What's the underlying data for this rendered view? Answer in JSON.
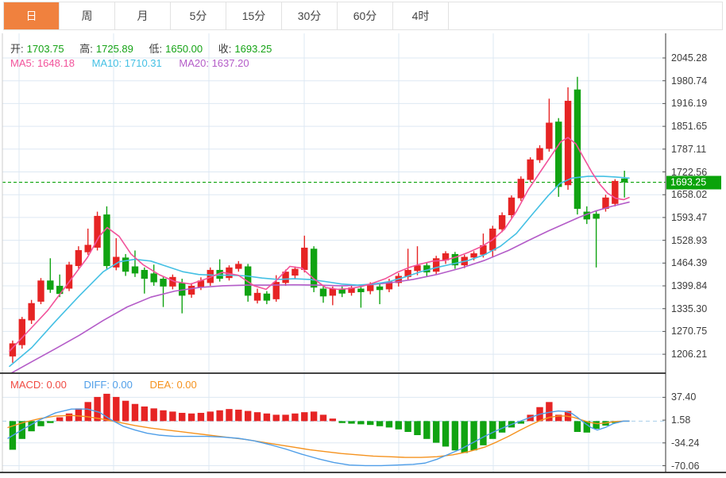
{
  "tabs": {
    "items": [
      {
        "label": "日",
        "selected": true
      },
      {
        "label": "周",
        "selected": false
      },
      {
        "label": "月",
        "selected": false
      },
      {
        "label": "5分",
        "selected": false
      },
      {
        "label": "15分",
        "selected": false
      },
      {
        "label": "30分",
        "selected": false
      },
      {
        "label": "60分",
        "selected": false
      },
      {
        "label": "4时",
        "selected": false
      }
    ]
  },
  "ohlc_header": {
    "open_label": "开:",
    "open_value": "1703.75",
    "high_label": "高:",
    "high_value": "1725.89",
    "low_label": "低:",
    "low_value": "1650.00",
    "close_label": "收:",
    "close_value": "1693.25"
  },
  "ma_header": {
    "ma5": "MA5: 1648.18",
    "ma10": "MA10: 1710.31",
    "ma20": "MA20: 1637.20"
  },
  "macd_header": {
    "macd": "MACD: 0.00",
    "diff": "DIFF: 0.00",
    "dea": "DEA: 0.00"
  },
  "price_axis": {
    "current_badge": "1693.25"
  },
  "colors": {
    "accent_tab": "#f0813e",
    "up_red": "#e62424",
    "down_green": "#10a312",
    "value_green": "#15a315",
    "ma5_pink": "#f2539b",
    "ma10_cyan": "#44c0e4",
    "ma20_purple": "#b45cc8",
    "diff_blue": "#4f9ee8",
    "dea_orange": "#f5921e",
    "macd_label_red": "#f04a42",
    "grid": "#dde8f3",
    "zero_dash": "#a8cdea",
    "axis_line": "#555555",
    "divider": "#2a2a2a",
    "badge_bg": "#0aa30a",
    "price_dash": "#0ca30a",
    "tick_text": "#3d3d3d"
  },
  "chart_data": {
    "type": "candlestick_with_macd",
    "main": {
      "ylim_ticks": [
        2045.28,
        1980.74,
        1916.19,
        1851.65,
        1787.11,
        1722.56,
        1658.02,
        1593.47,
        1528.93,
        1464.39,
        1399.84,
        1335.3,
        1270.75,
        1206.21
      ],
      "last_price": 1693.25,
      "candles_ohlc": [
        [
          1200,
          1245,
          1182,
          1237
        ],
        [
          1232,
          1312,
          1222,
          1306
        ],
        [
          1302,
          1360,
          1292,
          1351
        ],
        [
          1355,
          1422,
          1348,
          1415
        ],
        [
          1415,
          1478,
          1380,
          1389
        ],
        [
          1400,
          1432,
          1368,
          1377
        ],
        [
          1392,
          1468,
          1385,
          1460
        ],
        [
          1456,
          1512,
          1449,
          1501
        ],
        [
          1495,
          1562,
          1488,
          1516
        ],
        [
          1508,
          1610,
          1500,
          1598
        ],
        [
          1602,
          1625,
          1448,
          1456
        ],
        [
          1452,
          1535,
          1444,
          1482
        ],
        [
          1480,
          1490,
          1428,
          1440
        ],
        [
          1455,
          1500,
          1425,
          1435
        ],
        [
          1445,
          1452,
          1378,
          1420
        ],
        [
          1435,
          1460,
          1400,
          1410
        ],
        [
          1420,
          1428,
          1340,
          1398
        ],
        [
          1398,
          1432,
          1390,
          1425
        ],
        [
          1408,
          1420,
          1322,
          1372
        ],
        [
          1375,
          1408,
          1366,
          1400
        ],
        [
          1395,
          1424,
          1388,
          1415
        ],
        [
          1408,
          1452,
          1400,
          1445
        ],
        [
          1445,
          1475,
          1412,
          1420
        ],
        [
          1422,
          1458,
          1415,
          1452
        ],
        [
          1448,
          1470,
          1440,
          1462
        ],
        [
          1455,
          1462,
          1355,
          1372
        ],
        [
          1358,
          1392,
          1350,
          1380
        ],
        [
          1378,
          1385,
          1348,
          1358
        ],
        [
          1362,
          1430,
          1355,
          1411
        ],
        [
          1408,
          1446,
          1400,
          1440
        ],
        [
          1429,
          1455,
          1420,
          1448
        ],
        [
          1445,
          1542,
          1438,
          1508
        ],
        [
          1505,
          1512,
          1382,
          1395
        ],
        [
          1392,
          1400,
          1352,
          1370
        ],
        [
          1372,
          1398,
          1345,
          1392
        ],
        [
          1390,
          1398,
          1368,
          1378
        ],
        [
          1380,
          1402,
          1372,
          1395
        ],
        [
          1392,
          1400,
          1338,
          1382
        ],
        [
          1385,
          1410,
          1376,
          1402
        ],
        [
          1398,
          1405,
          1348,
          1388
        ],
        [
          1390,
          1420,
          1382,
          1412
        ],
        [
          1408,
          1436,
          1398,
          1428
        ],
        [
          1425,
          1505,
          1418,
          1445
        ],
        [
          1442,
          1512,
          1430,
          1458
        ],
        [
          1458,
          1465,
          1425,
          1438
        ],
        [
          1440,
          1485,
          1432,
          1478
        ],
        [
          1472,
          1498,
          1462,
          1492
        ],
        [
          1490,
          1496,
          1448,
          1458
        ],
        [
          1458,
          1488,
          1450,
          1482
        ],
        [
          1480,
          1498,
          1472,
          1492
        ],
        [
          1488,
          1548,
          1480,
          1515
        ],
        [
          1500,
          1570,
          1480,
          1562
        ],
        [
          1560,
          1608,
          1552,
          1600
        ],
        [
          1600,
          1656,
          1592,
          1650
        ],
        [
          1648,
          1710,
          1640,
          1703
        ],
        [
          1700,
          1764,
          1694,
          1758
        ],
        [
          1756,
          1798,
          1748,
          1790
        ],
        [
          1788,
          1930,
          1780,
          1862
        ],
        [
          1865,
          1875,
          1652,
          1680
        ],
        [
          1685,
          1962,
          1672,
          1924
        ],
        [
          1956,
          1992,
          1602,
          1618
        ],
        [
          1610,
          1625,
          1575,
          1588
        ],
        [
          1604,
          1612,
          1452,
          1590
        ],
        [
          1618,
          1658,
          1610,
          1650
        ],
        [
          1632,
          1702,
          1625,
          1697
        ],
        [
          1703.75,
          1725.89,
          1650.0,
          1693.25
        ]
      ],
      "ma5": [
        [
          12,
          1215
        ],
        [
          35,
          1270
        ],
        [
          60,
          1330
        ],
        [
          85,
          1405
        ],
        [
          110,
          1480
        ],
        [
          125,
          1540
        ],
        [
          135,
          1565
        ],
        [
          150,
          1540
        ],
        [
          165,
          1490
        ],
        [
          180,
          1460
        ],
        [
          200,
          1432
        ],
        [
          220,
          1412
        ],
        [
          240,
          1405
        ],
        [
          260,
          1420
        ],
        [
          280,
          1438
        ],
        [
          300,
          1430
        ],
        [
          320,
          1400
        ],
        [
          335,
          1390
        ],
        [
          350,
          1420
        ],
        [
          365,
          1455
        ],
        [
          380,
          1450
        ],
        [
          395,
          1420
        ],
        [
          410,
          1395
        ],
        [
          425,
          1390
        ],
        [
          440,
          1392
        ],
        [
          455,
          1398
        ],
        [
          470,
          1408
        ],
        [
          485,
          1420
        ],
        [
          500,
          1438
        ],
        [
          515,
          1452
        ],
        [
          530,
          1462
        ],
        [
          545,
          1470
        ],
        [
          560,
          1472
        ],
        [
          575,
          1482
        ],
        [
          590,
          1495
        ],
        [
          605,
          1510
        ],
        [
          620,
          1530
        ],
        [
          635,
          1560
        ],
        [
          650,
          1610
        ],
        [
          665,
          1672
        ],
        [
          680,
          1722
        ],
        [
          695,
          1772
        ],
        [
          706,
          1808
        ],
        [
          715,
          1820
        ],
        [
          725,
          1802
        ],
        [
          735,
          1762
        ],
        [
          745,
          1722
        ],
        [
          755,
          1688
        ],
        [
          765,
          1662
        ],
        [
          775,
          1648
        ],
        [
          785,
          1644
        ],
        [
          792,
          1650
        ]
      ],
      "ma10": [
        [
          12,
          1172
        ],
        [
          40,
          1225
        ],
        [
          70,
          1300
        ],
        [
          100,
          1372
        ],
        [
          130,
          1440
        ],
        [
          150,
          1468
        ],
        [
          170,
          1475
        ],
        [
          190,
          1470
        ],
        [
          210,
          1455
        ],
        [
          230,
          1440
        ],
        [
          250,
          1432
        ],
        [
          270,
          1430
        ],
        [
          290,
          1430
        ],
        [
          310,
          1428
        ],
        [
          330,
          1422
        ],
        [
          350,
          1418
        ],
        [
          370,
          1420
        ],
        [
          390,
          1418
        ],
        [
          410,
          1412
        ],
        [
          430,
          1405
        ],
        [
          450,
          1402
        ],
        [
          470,
          1405
        ],
        [
          490,
          1412
        ],
        [
          510,
          1425
        ],
        [
          530,
          1440
        ],
        [
          550,
          1452
        ],
        [
          570,
          1462
        ],
        [
          590,
          1472
        ],
        [
          610,
          1488
        ],
        [
          630,
          1512
        ],
        [
          650,
          1548
        ],
        [
          670,
          1602
        ],
        [
          690,
          1655
        ],
        [
          705,
          1690
        ],
        [
          720,
          1705
        ],
        [
          740,
          1710
        ],
        [
          760,
          1710
        ],
        [
          775,
          1708
        ],
        [
          792,
          1705
        ]
      ],
      "ma20": [
        [
          12,
          1150
        ],
        [
          40,
          1185
        ],
        [
          70,
          1222
        ],
        [
          100,
          1260
        ],
        [
          130,
          1302
        ],
        [
          160,
          1340
        ],
        [
          190,
          1368
        ],
        [
          220,
          1385
        ],
        [
          250,
          1395
        ],
        [
          280,
          1400
        ],
        [
          310,
          1402
        ],
        [
          340,
          1402
        ],
        [
          370,
          1403
        ],
        [
          400,
          1402
        ],
        [
          430,
          1400
        ],
        [
          460,
          1402
        ],
        [
          490,
          1408
        ],
        [
          520,
          1418
        ],
        [
          550,
          1432
        ],
        [
          580,
          1450
        ],
        [
          610,
          1472
        ],
        [
          640,
          1500
        ],
        [
          665,
          1528
        ],
        [
          690,
          1555
        ],
        [
          710,
          1575
        ],
        [
          730,
          1595
        ],
        [
          750,
          1612
        ],
        [
          770,
          1625
        ],
        [
          792,
          1637
        ]
      ]
    },
    "macd": {
      "ylim_ticks": [
        37.4,
        1.58,
        -34.24,
        -70.06
      ],
      "histogram": [
        -45,
        -28,
        -16,
        -8,
        -3,
        6,
        12,
        20,
        30,
        38,
        43,
        38,
        32,
        27,
        23,
        20,
        17,
        15,
        13,
        12,
        13,
        15,
        17,
        19,
        18,
        16,
        14,
        12,
        10,
        10,
        12,
        14,
        15,
        10,
        4,
        -3,
        -4,
        -5,
        -6,
        -8,
        -10,
        -13,
        -17,
        -22,
        -28,
        -34,
        -40,
        -46,
        -50,
        -46,
        -38,
        -28,
        -18,
        -10,
        -4,
        10,
        22,
        30,
        10,
        16,
        -17,
        -18,
        -12,
        -7,
        -3,
        0
      ],
      "diff": [
        [
          10,
          -27
        ],
        [
          30,
          -12
        ],
        [
          50,
          2
        ],
        [
          70,
          13
        ],
        [
          90,
          19
        ],
        [
          110,
          19
        ],
        [
          125,
          14
        ],
        [
          140,
          2
        ],
        [
          155,
          -8
        ],
        [
          170,
          -14
        ],
        [
          185,
          -19
        ],
        [
          200,
          -22
        ],
        [
          220,
          -24
        ],
        [
          240,
          -24
        ],
        [
          260,
          -24
        ],
        [
          280,
          -25
        ],
        [
          300,
          -27
        ],
        [
          320,
          -31
        ],
        [
          340,
          -37
        ],
        [
          360,
          -44
        ],
        [
          380,
          -52
        ],
        [
          400,
          -59
        ],
        [
          420,
          -65
        ],
        [
          440,
          -69
        ],
        [
          460,
          -70
        ],
        [
          480,
          -70
        ],
        [
          500,
          -69
        ],
        [
          520,
          -68
        ],
        [
          535,
          -66
        ],
        [
          550,
          -60
        ],
        [
          565,
          -52
        ],
        [
          580,
          -44
        ],
        [
          595,
          -34
        ],
        [
          610,
          -24
        ],
        [
          625,
          -15
        ],
        [
          640,
          -7
        ],
        [
          655,
          0
        ],
        [
          668,
          6
        ],
        [
          680,
          11
        ],
        [
          692,
          14
        ],
        [
          703,
          16
        ],
        [
          712,
          15
        ],
        [
          720,
          12
        ],
        [
          728,
          5
        ],
        [
          736,
          -3
        ],
        [
          744,
          -10
        ],
        [
          752,
          -14
        ],
        [
          762,
          -10
        ],
        [
          772,
          -4
        ],
        [
          785,
          0
        ],
        [
          792,
          0
        ]
      ],
      "dea": [
        [
          10,
          -10
        ],
        [
          30,
          -2
        ],
        [
          50,
          4
        ],
        [
          70,
          8
        ],
        [
          90,
          9
        ],
        [
          110,
          7
        ],
        [
          130,
          3
        ],
        [
          150,
          -2
        ],
        [
          170,
          -7
        ],
        [
          190,
          -11
        ],
        [
          210,
          -14
        ],
        [
          230,
          -17
        ],
        [
          250,
          -20
        ],
        [
          270,
          -23
        ],
        [
          290,
          -26
        ],
        [
          310,
          -29
        ],
        [
          330,
          -33
        ],
        [
          350,
          -37
        ],
        [
          370,
          -41
        ],
        [
          390,
          -45
        ],
        [
          410,
          -48
        ],
        [
          430,
          -51
        ],
        [
          450,
          -53
        ],
        [
          470,
          -55
        ],
        [
          490,
          -56
        ],
        [
          510,
          -57
        ],
        [
          530,
          -57
        ],
        [
          550,
          -56
        ],
        [
          570,
          -53
        ],
        [
          590,
          -48
        ],
        [
          610,
          -41
        ],
        [
          625,
          -33
        ],
        [
          640,
          -24
        ],
        [
          655,
          -14
        ],
        [
          668,
          -6
        ],
        [
          680,
          1
        ],
        [
          692,
          6
        ],
        [
          703,
          8
        ],
        [
          712,
          8
        ],
        [
          722,
          6
        ],
        [
          732,
          2
        ],
        [
          742,
          -2
        ],
        [
          752,
          -4
        ],
        [
          762,
          -3
        ],
        [
          772,
          -1
        ],
        [
          785,
          0
        ],
        [
          792,
          0
        ]
      ]
    },
    "layout_hints": {
      "vertical_gridlines_x": [
        24,
        143,
        263,
        383,
        502,
        621,
        741
      ],
      "legend_position": "none",
      "grid": true
    }
  }
}
